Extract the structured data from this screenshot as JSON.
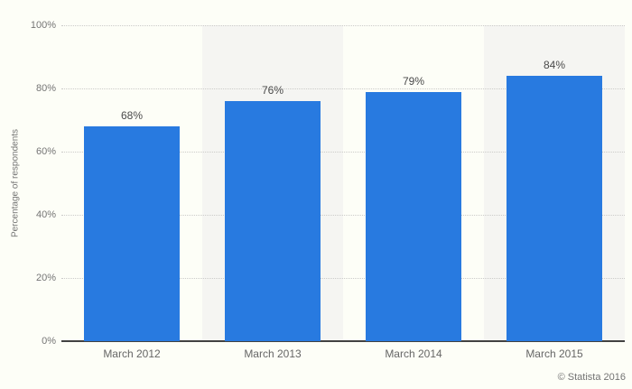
{
  "chart_data": {
    "type": "bar",
    "categories": [
      "March 2012",
      "March 2013",
      "March 2014",
      "March 2015"
    ],
    "values": [
      68,
      76,
      79,
      84
    ],
    "value_labels": [
      "68%",
      "76%",
      "79%",
      "84%"
    ],
    "title": "",
    "xlabel": "",
    "ylabel": "Percentage of respondents",
    "ylim": [
      0,
      100
    ],
    "yticks": [
      0,
      20,
      40,
      60,
      80,
      100
    ],
    "ytick_labels": [
      "0%",
      "20%",
      "40%",
      "60%",
      "80%",
      "100%"
    ],
    "grid": "horizontal-dotted",
    "legend_position": "none",
    "bar_color": "#287ae0",
    "band_color": "#f5f5f2",
    "background_color": "#fdfef7",
    "baseline_color": "#424242"
  },
  "footer": {
    "copyright": "© Statista 2016"
  }
}
